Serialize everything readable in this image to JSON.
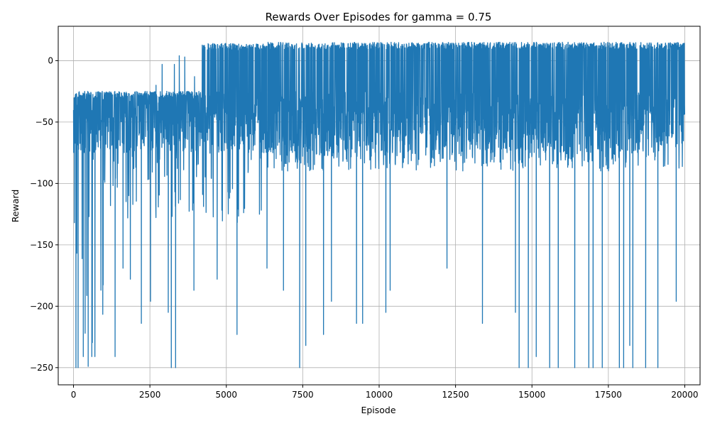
{
  "chart_data": {
    "type": "line",
    "title": "Rewards Over Episodes for gamma = 0.75",
    "xlabel": "Episode",
    "ylabel": "Reward",
    "xlim": [
      -500,
      20500
    ],
    "ylim": [
      -264,
      28
    ],
    "xticks": [
      0,
      2500,
      5000,
      7500,
      10000,
      12500,
      15000,
      17500,
      20000
    ],
    "yticks": [
      0,
      -50,
      -100,
      -150,
      -200,
      -250
    ],
    "grid": true,
    "series": [
      {
        "color": "#1f77b4",
        "phases": [
          {
            "x_start": 0,
            "x_end": 400,
            "upper": -25,
            "lower": -250
          },
          {
            "x_start": 400,
            "x_end": 1000,
            "upper": -25,
            "lower": -241
          },
          {
            "x_start": 1000,
            "x_end": 4200,
            "upper": -25,
            "lower": -130
          },
          {
            "x_start": 4200,
            "x_end": 6300,
            "upper": 14,
            "lower": -135
          },
          {
            "x_start": 6300,
            "x_end": 20000,
            "upper": 15,
            "lower": -90
          }
        ],
        "notable_points": [
          {
            "x": 30,
            "y": -132
          },
          {
            "x": 80,
            "y": -250
          },
          {
            "x": 150,
            "y": -250
          },
          {
            "x": 320,
            "y": -241
          },
          {
            "x": 380,
            "y": -222
          },
          {
            "x": 480,
            "y": -249
          },
          {
            "x": 600,
            "y": -241
          },
          {
            "x": 700,
            "y": -241
          },
          {
            "x": 1360,
            "y": -241
          },
          {
            "x": 1620,
            "y": -169
          },
          {
            "x": 1860,
            "y": -178
          },
          {
            "x": 2220,
            "y": -214
          },
          {
            "x": 2520,
            "y": -196
          },
          {
            "x": 2700,
            "y": -20
          },
          {
            "x": 2900,
            "y": -3
          },
          {
            "x": 3100,
            "y": -205
          },
          {
            "x": 3200,
            "y": -250
          },
          {
            "x": 3300,
            "y": -3
          },
          {
            "x": 3340,
            "y": -250
          },
          {
            "x": 3460,
            "y": 4
          },
          {
            "x": 3640,
            "y": 3
          },
          {
            "x": 3940,
            "y": -187
          },
          {
            "x": 3960,
            "y": -13
          },
          {
            "x": 4700,
            "y": -178
          },
          {
            "x": 5350,
            "y": -223
          },
          {
            "x": 6330,
            "y": -169
          },
          {
            "x": 6870,
            "y": -187
          },
          {
            "x": 7400,
            "y": -250
          },
          {
            "x": 7600,
            "y": -232
          },
          {
            "x": 8180,
            "y": -223
          },
          {
            "x": 8440,
            "y": -196
          },
          {
            "x": 9260,
            "y": -214
          },
          {
            "x": 9460,
            "y": -214
          },
          {
            "x": 10220,
            "y": -205
          },
          {
            "x": 10360,
            "y": -187
          },
          {
            "x": 12220,
            "y": -169
          },
          {
            "x": 13380,
            "y": -214
          },
          {
            "x": 14460,
            "y": -205
          },
          {
            "x": 14580,
            "y": -250
          },
          {
            "x": 14880,
            "y": -250
          },
          {
            "x": 15140,
            "y": -241
          },
          {
            "x": 15580,
            "y": -250
          },
          {
            "x": 15860,
            "y": -250
          },
          {
            "x": 16400,
            "y": -250
          },
          {
            "x": 16860,
            "y": -250
          },
          {
            "x": 17000,
            "y": -250
          },
          {
            "x": 17300,
            "y": -250
          },
          {
            "x": 17860,
            "y": -250
          },
          {
            "x": 18000,
            "y": -250
          },
          {
            "x": 18200,
            "y": -232
          },
          {
            "x": 18300,
            "y": -250
          },
          {
            "x": 18720,
            "y": -250
          },
          {
            "x": 19120,
            "y": -250
          },
          {
            "x": 19720,
            "y": -196
          }
        ]
      }
    ]
  }
}
